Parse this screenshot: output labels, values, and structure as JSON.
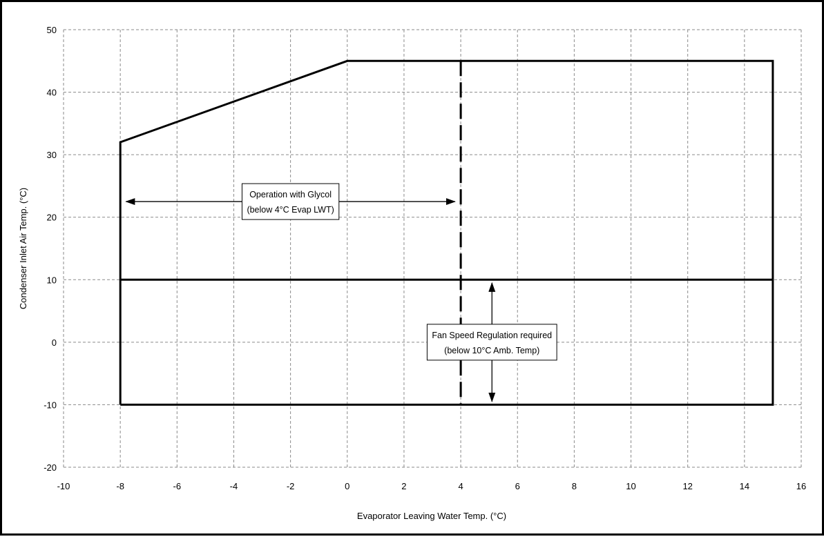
{
  "chart_data": {
    "type": "line",
    "xlabel": "Evaporator Leaving Water Temp. (°C)",
    "ylabel": "Condenser Inlet Air Temp. (°C)",
    "xlim": [
      -10,
      16
    ],
    "ylim": [
      -20,
      50
    ],
    "x_ticks": [
      -10,
      -8,
      -6,
      -4,
      -2,
      0,
      2,
      4,
      6,
      8,
      10,
      12,
      14,
      16
    ],
    "y_ticks": [
      50,
      40,
      30,
      20,
      10,
      0,
      -10,
      -20
    ],
    "grid": true,
    "series": [
      {
        "style": "solid",
        "x": [
          -8,
          -8,
          0,
          15,
          15,
          -8
        ],
        "y": [
          -10,
          32,
          45,
          45,
          -10,
          -10
        ]
      },
      {
        "style": "solid",
        "x": [
          -8,
          15
        ],
        "y": [
          10,
          10
        ]
      },
      {
        "style": "dashed",
        "x": [
          4,
          4
        ],
        "y": [
          45,
          -10
        ]
      }
    ],
    "annotations": [
      {
        "id": "glycol",
        "lines": [
          "Operation with Glycol",
          "(below 4°C Evap LWT)"
        ],
        "arrow": {
          "direction": "horizontal",
          "from": [
            -7.8,
            22.5
          ],
          "to": [
            3.8,
            22.5
          ]
        }
      },
      {
        "id": "fan",
        "lines": [
          "Fan Speed Regulation required",
          "(below 10°C Amb. Temp)"
        ],
        "arrow": {
          "direction": "vertical",
          "from": [
            5.1,
            9.5
          ],
          "to": [
            5.1,
            -9.5
          ]
        }
      }
    ]
  }
}
